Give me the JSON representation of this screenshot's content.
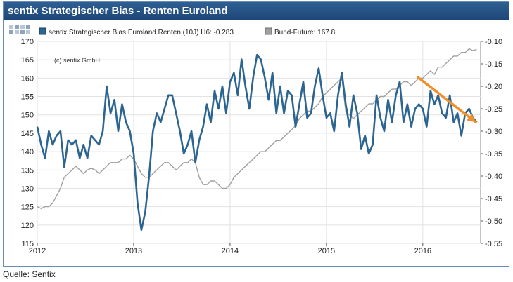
{
  "title": "sentix Strategischer Bias - Renten Euroland",
  "source": "Quelle: Sentix",
  "copyright": "(c) sentix GmbH",
  "colors": {
    "series1": "#2c6591",
    "series2": "#a0a0a0",
    "trend": "#f0902a",
    "header": "#1f4a7c"
  },
  "chart_data": {
    "type": "line",
    "legend_position": "top",
    "grid": true,
    "x_ticks": [
      "2012",
      "2013",
      "2014",
      "2015",
      "2016"
    ],
    "y_left_ticks": [
      "115",
      "120",
      "125",
      "130",
      "135",
      "140",
      "145",
      "150",
      "155",
      "160",
      "165",
      "170"
    ],
    "y_right_ticks": [
      "-0.55",
      "-0.50",
      "-0.45",
      "-0.40",
      "-0.35",
      "-0.30",
      "-0.25",
      "-0.20",
      "-0.15",
      "-0.10"
    ],
    "y_left_lim": [
      115,
      170
    ],
    "y_right_lim": [
      -0.55,
      -0.1
    ],
    "x_lim": [
      2012.0,
      2016.6
    ],
    "series": [
      {
        "name": "sentix Strategischer Bias Euroland Renten (10J) H6: -0.283",
        "axis": "right",
        "x": [
          2012.0,
          2012.04,
          2012.08,
          2012.12,
          2012.16,
          2012.2,
          2012.24,
          2012.28,
          2012.32,
          2012.36,
          2012.4,
          2012.44,
          2012.48,
          2012.52,
          2012.56,
          2012.6,
          2012.64,
          2012.68,
          2012.72,
          2012.76,
          2012.8,
          2012.84,
          2012.88,
          2012.92,
          2012.96,
          2013.0,
          2013.04,
          2013.08,
          2013.12,
          2013.16,
          2013.2,
          2013.24,
          2013.28,
          2013.32,
          2013.36,
          2013.4,
          2013.44,
          2013.48,
          2013.52,
          2013.56,
          2013.6,
          2013.64,
          2013.68,
          2013.72,
          2013.76,
          2013.8,
          2013.84,
          2013.88,
          2013.92,
          2013.96,
          2014.0,
          2014.04,
          2014.08,
          2014.12,
          2014.16,
          2014.2,
          2014.24,
          2014.28,
          2014.32,
          2014.36,
          2014.4,
          2014.44,
          2014.48,
          2014.52,
          2014.56,
          2014.6,
          2014.64,
          2014.68,
          2014.72,
          2014.76,
          2014.8,
          2014.84,
          2014.88,
          2014.92,
          2014.96,
          2015.0,
          2015.04,
          2015.08,
          2015.12,
          2015.16,
          2015.2,
          2015.24,
          2015.28,
          2015.32,
          2015.36,
          2015.4,
          2015.44,
          2015.48,
          2015.52,
          2015.56,
          2015.6,
          2015.64,
          2015.68,
          2015.72,
          2015.76,
          2015.8,
          2015.84,
          2015.88,
          2015.92,
          2015.96,
          2016.0,
          2016.04,
          2016.08,
          2016.12,
          2016.16,
          2016.2,
          2016.24,
          2016.28,
          2016.32,
          2016.36,
          2016.4,
          2016.44,
          2016.48,
          2016.52,
          2016.56
        ],
        "y": [
          -0.29,
          -0.33,
          -0.36,
          -0.3,
          -0.33,
          -0.31,
          -0.3,
          -0.38,
          -0.32,
          -0.33,
          -0.32,
          -0.36,
          -0.33,
          -0.36,
          -0.31,
          -0.32,
          -0.33,
          -0.3,
          -0.2,
          -0.26,
          -0.23,
          -0.3,
          -0.24,
          -0.28,
          -0.3,
          -0.35,
          -0.46,
          -0.52,
          -0.48,
          -0.4,
          -0.3,
          -0.26,
          -0.28,
          -0.25,
          -0.22,
          -0.22,
          -0.26,
          -0.3,
          -0.35,
          -0.33,
          -0.3,
          -0.37,
          -0.32,
          -0.29,
          -0.24,
          -0.28,
          -0.21,
          -0.25,
          -0.2,
          -0.26,
          -0.19,
          -0.17,
          -0.22,
          -0.14,
          -0.2,
          -0.25,
          -0.18,
          -0.13,
          -0.14,
          -0.18,
          -0.23,
          -0.17,
          -0.26,
          -0.2,
          -0.26,
          -0.21,
          -0.22,
          -0.29,
          -0.24,
          -0.19,
          -0.27,
          -0.26,
          -0.2,
          -0.16,
          -0.22,
          -0.27,
          -0.26,
          -0.3,
          -0.22,
          -0.17,
          -0.24,
          -0.29,
          -0.22,
          -0.26,
          -0.34,
          -0.31,
          -0.35,
          -0.33,
          -0.22,
          -0.27,
          -0.3,
          -0.23,
          -0.28,
          -0.22,
          -0.19,
          -0.28,
          -0.24,
          -0.29,
          -0.25,
          -0.24,
          -0.25,
          -0.29,
          -0.21,
          -0.24,
          -0.22,
          -0.26,
          -0.27,
          -0.22,
          -0.28,
          -0.26,
          -0.31,
          -0.26,
          -0.25,
          -0.27,
          -0.28
        ]
      },
      {
        "name": "Bund-Future: 167.8",
        "axis": "left",
        "x": [
          2012.0,
          2012.04,
          2012.08,
          2012.12,
          2012.16,
          2012.2,
          2012.24,
          2012.28,
          2012.32,
          2012.36,
          2012.4,
          2012.44,
          2012.48,
          2012.52,
          2012.56,
          2012.6,
          2012.64,
          2012.68,
          2012.72,
          2012.76,
          2012.8,
          2012.84,
          2012.88,
          2012.92,
          2012.96,
          2013.0,
          2013.04,
          2013.08,
          2013.12,
          2013.16,
          2013.2,
          2013.24,
          2013.28,
          2013.32,
          2013.36,
          2013.4,
          2013.44,
          2013.48,
          2013.52,
          2013.56,
          2013.6,
          2013.64,
          2013.68,
          2013.72,
          2013.76,
          2013.8,
          2013.84,
          2013.88,
          2013.92,
          2013.96,
          2014.0,
          2014.04,
          2014.08,
          2014.12,
          2014.16,
          2014.2,
          2014.24,
          2014.28,
          2014.32,
          2014.36,
          2014.4,
          2014.44,
          2014.48,
          2014.52,
          2014.56,
          2014.6,
          2014.64,
          2014.68,
          2014.72,
          2014.76,
          2014.8,
          2014.84,
          2014.88,
          2014.92,
          2014.96,
          2015.0,
          2015.04,
          2015.08,
          2015.12,
          2015.16,
          2015.2,
          2015.24,
          2015.28,
          2015.32,
          2015.36,
          2015.4,
          2015.44,
          2015.48,
          2015.52,
          2015.56,
          2015.6,
          2015.64,
          2015.68,
          2015.72,
          2015.76,
          2015.8,
          2015.84,
          2015.88,
          2015.92,
          2015.96,
          2016.0,
          2016.04,
          2016.08,
          2016.12,
          2016.16,
          2016.2,
          2016.24,
          2016.28,
          2016.32,
          2016.36,
          2016.4,
          2016.44,
          2016.48,
          2016.52,
          2016.56
        ],
        "y": [
          125,
          124.5,
          125,
          125,
          126,
          128,
          130,
          133,
          134,
          135,
          136,
          135,
          134,
          135,
          135.5,
          135,
          134,
          135,
          136,
          137,
          137,
          137,
          138,
          138,
          139,
          138,
          136,
          134,
          133,
          133,
          134,
          135,
          136,
          137,
          137,
          136,
          135,
          136,
          137,
          137,
          138,
          137,
          133,
          131,
          131,
          132,
          132,
          131,
          130,
          130,
          131,
          133,
          134,
          135,
          136,
          137,
          138,
          139,
          140,
          140,
          141,
          142,
          143,
          143,
          144,
          145,
          146,
          147,
          149,
          150,
          151,
          151,
          152,
          153,
          155,
          156,
          157,
          158,
          159,
          160,
          151,
          150,
          149,
          150,
          151,
          152,
          153,
          153,
          154,
          155,
          155,
          156,
          157,
          157,
          158,
          159,
          159,
          158,
          159,
          160,
          160,
          161,
          162,
          161,
          163,
          163,
          164,
          165,
          166,
          166,
          167,
          167,
          168,
          167.5,
          167.8
        ]
      }
    ],
    "annotations": [
      {
        "type": "arrow",
        "axis": "right",
        "x1": 2015.95,
        "y1": -0.18,
        "x2": 2016.55,
        "y2": -0.28
      }
    ]
  }
}
